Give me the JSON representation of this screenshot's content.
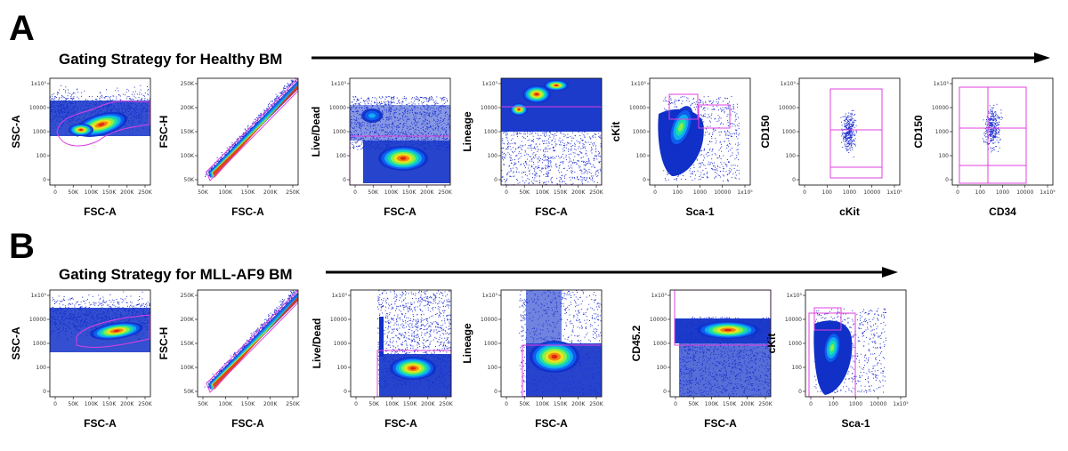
{
  "panels": [
    {
      "letter": "A",
      "title": "Gating Strategy for Healthy BM",
      "plots": [
        {
          "ylabel": "SSC-A",
          "xlabel": "FSC-A",
          "xticks": [
            "0",
            "50K",
            "100K",
            "150K",
            "200K",
            "250K"
          ],
          "yticks": [
            "1x10⁵",
            "10000",
            "1000",
            "100",
            "0"
          ],
          "type": "ssc"
        },
        {
          "ylabel": "FSC-H",
          "xlabel": "FSC-A",
          "xticks": [
            "50K",
            "100K",
            "150K",
            "200K",
            "250K"
          ],
          "yticks": [
            "250K",
            "200K",
            "150K",
            "100K",
            "50K"
          ],
          "type": "singlet"
        },
        {
          "ylabel": "Live/Dead",
          "xlabel": "FSC-A",
          "xticks": [
            "0",
            "50K",
            "100K",
            "150K",
            "200K",
            "250K"
          ],
          "yticks": [
            "1x10⁵",
            "10000",
            "1000",
            "100",
            "0"
          ],
          "type": "live"
        },
        {
          "ylabel": "Lineage",
          "xlabel": "FSC-A",
          "xticks": [
            "0",
            "50K",
            "100K",
            "150K",
            "200K",
            "250K"
          ],
          "yticks": [
            "1x10⁵",
            "10000",
            "1000",
            "100",
            "0"
          ],
          "type": "lineage"
        },
        {
          "ylabel": "cKit",
          "xlabel": "Sca-1",
          "xticks": [
            "0",
            "100",
            "1000",
            "10000",
            "1x10⁵"
          ],
          "yticks": [
            "1x10⁵",
            "10000",
            "1000",
            "100",
            "0"
          ],
          "type": "lsk"
        },
        {
          "ylabel": "CD150",
          "xlabel": "cKit",
          "xticks": [
            "0",
            "100",
            "1000",
            "10000",
            "1x10⁵"
          ],
          "yticks": [
            "1x10⁵",
            "10000",
            "1000",
            "100",
            "0"
          ],
          "type": "cd150kit"
        },
        {
          "ylabel": "CD150",
          "xlabel": "CD34",
          "xticks": [
            "0",
            "100",
            "1000",
            "10000",
            "1x10⁵"
          ],
          "yticks": [
            "1x10⁵",
            "10000",
            "1000",
            "100",
            "0"
          ],
          "type": "cd150cd34"
        }
      ]
    },
    {
      "letter": "B",
      "title": "Gating Strategy for MLL-AF9 BM",
      "plots": [
        {
          "ylabel": "SSC-A",
          "xlabel": "FSC-A",
          "xticks": [
            "0",
            "50K",
            "100K",
            "150K",
            "200K",
            "250K"
          ],
          "yticks": [
            "1x10⁵",
            "10000",
            "1000",
            "100",
            "0"
          ],
          "type": "ssc2"
        },
        {
          "ylabel": "FSC-H",
          "xlabel": "FSC-A",
          "xticks": [
            "50K",
            "100K",
            "150K",
            "200K",
            "250K"
          ],
          "yticks": [
            "250K",
            "200K",
            "150K",
            "100K",
            "50K"
          ],
          "type": "singlet"
        },
        {
          "ylabel": "Live/Dead",
          "xlabel": "FSC-A",
          "xticks": [
            "0",
            "50K",
            "100K",
            "150K",
            "200K",
            "250K"
          ],
          "yticks": [
            "1x10⁵",
            "10000",
            "1000",
            "100",
            "0"
          ],
          "type": "live2"
        },
        {
          "ylabel": "Lineage",
          "xlabel": "FSC-A",
          "xticks": [
            "0",
            "50K",
            "100K",
            "150K",
            "200K",
            "250K"
          ],
          "yticks": [
            "1x10⁵",
            "10000",
            "1000",
            "100",
            "0"
          ],
          "type": "lineage2"
        },
        {
          "ylabel": "CD45.2",
          "xlabel": "FSC-A",
          "xticks": [
            "0",
            "50K",
            "100K",
            "150K",
            "200K",
            "250K"
          ],
          "yticks": [
            "1x10⁵",
            "10000",
            "1000",
            "100",
            "0"
          ],
          "type": "cd45"
        },
        {
          "ylabel": "cKit",
          "xlabel": "Sca-1",
          "xticks": [
            "0",
            "100",
            "1000",
            "10000",
            "1x10⁵"
          ],
          "yticks": [
            "1x10⁵",
            "10000",
            "1000",
            "100",
            "0"
          ],
          "type": "lsk2"
        }
      ]
    }
  ],
  "colors": {
    "gate": "#e040e0",
    "dot": "#2030d0",
    "arrow": "#000000"
  }
}
